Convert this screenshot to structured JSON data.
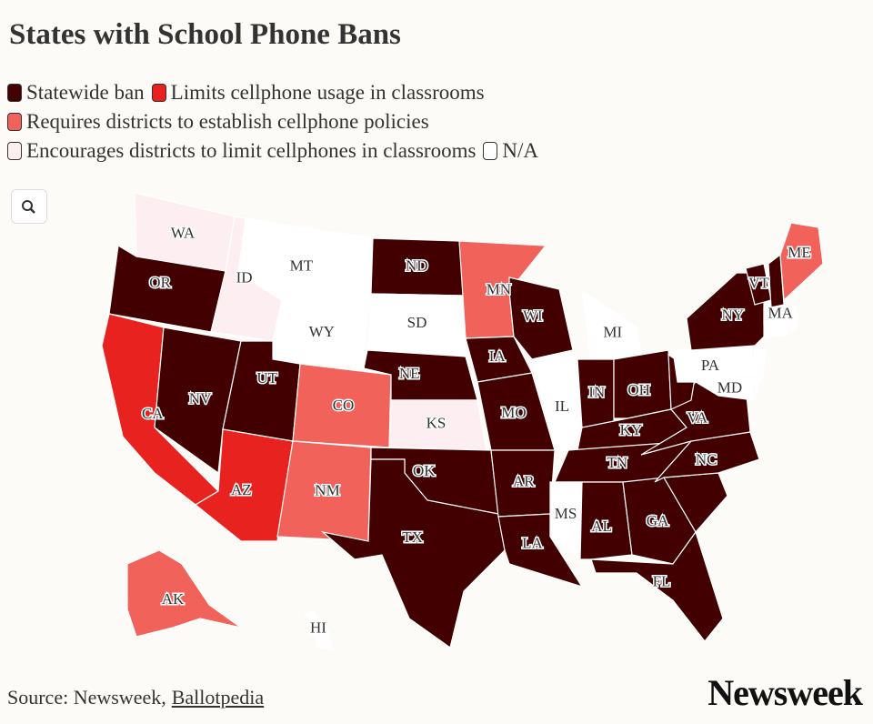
{
  "title": "States with School Phone Bans",
  "legend": [
    {
      "label": "Statewide ban",
      "color": "#420000"
    },
    {
      "label": "Limits cellphone usage in classrooms",
      "color": "#e8231f"
    },
    {
      "label": "Requires districts to establish cellphone policies",
      "color": "#f0625a"
    },
    {
      "label": "Encourages districts to limit cellphones in classrooms",
      "color": "#fdeef1"
    },
    {
      "label": "N/A",
      "color": "#ffffff"
    }
  ],
  "states": [
    {
      "label": "WA",
      "category": 3
    },
    {
      "label": "OR",
      "category": 0
    },
    {
      "label": "CA",
      "category": 1
    },
    {
      "label": "NV",
      "category": 0
    },
    {
      "label": "ID",
      "category": 3
    },
    {
      "label": "MT",
      "category": 4
    },
    {
      "label": "WY",
      "category": 4
    },
    {
      "label": "UT",
      "category": 0
    },
    {
      "label": "AZ",
      "category": 1
    },
    {
      "label": "CO",
      "category": 2
    },
    {
      "label": "NM",
      "category": 2
    },
    {
      "label": "ND",
      "category": 0
    },
    {
      "label": "SD",
      "category": 4
    },
    {
      "label": "NE",
      "category": 0
    },
    {
      "label": "KS",
      "category": 3
    },
    {
      "label": "OK",
      "category": 0
    },
    {
      "label": "TX",
      "category": 0
    },
    {
      "label": "MN",
      "category": 2
    },
    {
      "label": "IA",
      "category": 0
    },
    {
      "label": "MO",
      "category": 0
    },
    {
      "label": "AR",
      "category": 0
    },
    {
      "label": "LA",
      "category": 0
    },
    {
      "label": "WI",
      "category": 0
    },
    {
      "label": "IL",
      "category": 4
    },
    {
      "label": "MI",
      "category": 4
    },
    {
      "label": "IN",
      "category": 0
    },
    {
      "label": "OH",
      "category": 0
    },
    {
      "label": "KY",
      "category": 0
    },
    {
      "label": "TN",
      "category": 0
    },
    {
      "label": "MS",
      "category": 4
    },
    {
      "label": "AL",
      "category": 0
    },
    {
      "label": "GA",
      "category": 0
    },
    {
      "label": "FL",
      "category": 0
    },
    {
      "category": 0
    },
    {
      "label": "NC",
      "category": 0
    },
    {
      "label": "VA",
      "category": 0
    },
    {
      "category": 0
    },
    {
      "label": "PA",
      "category": 4
    },
    {
      "label": "NY",
      "category": 0
    },
    {
      "label": "VT",
      "category": 0
    },
    {
      "category": 0
    },
    {
      "label": "ME",
      "category": 2
    },
    {
      "label": "MA",
      "category": 4
    },
    {
      "category": 4
    },
    {
      "category": 4
    },
    {
      "category": 4
    },
    {
      "category": 4
    },
    {
      "label": "MD",
      "category": 4
    },
    {
      "label": "AK",
      "category": 2
    },
    {
      "label": "HI",
      "category": 4
    }
  ],
  "source": {
    "text": "Source: Newsweek,",
    "link": "Ballotpedia"
  },
  "logo": "Newsweek"
}
